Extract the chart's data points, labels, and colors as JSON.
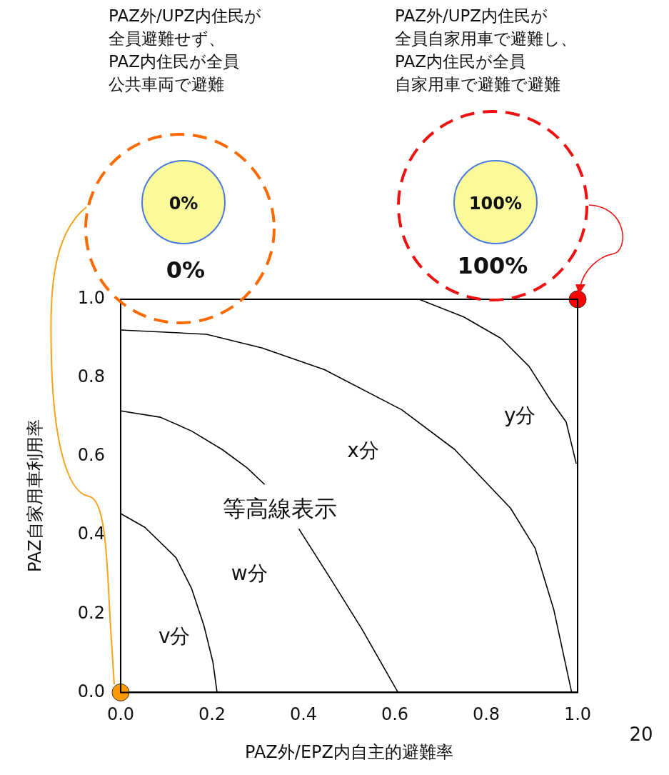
{
  "chart_data": {
    "type": "line",
    "xlabel": "PAZ外/EPZ内自主的避難率",
    "ylabel": "PAZ自家用車利用率",
    "xlim": [
      0,
      1
    ],
    "ylim": [
      0,
      1
    ],
    "xticks": [
      {
        "value": 0,
        "label": "0.0"
      },
      {
        "value": 0.2,
        "label": "0.2"
      },
      {
        "value": 0.4,
        "label": "0.4"
      },
      {
        "value": 0.6,
        "label": "0.6"
      },
      {
        "value": 0.8,
        "label": "0.8"
      },
      {
        "value": 1,
        "label": "1.0"
      }
    ],
    "yticks": [
      {
        "value": 0,
        "label": "0.0"
      },
      {
        "value": 0.2,
        "label": "0.2"
      },
      {
        "value": 0.4,
        "label": "0.4"
      },
      {
        "value": 0.6,
        "label": "0.6"
      },
      {
        "value": 0.8,
        "label": "0.8"
      },
      {
        "value": 1,
        "label": "1.0"
      }
    ],
    "grid": false,
    "legend": false,
    "marker": "none",
    "line_style": "solid",
    "series": [
      {
        "name": "v分",
        "color": "#000000",
        "x": [
          0,
          0.053,
          0.121,
          0.155,
          0.182,
          0.202,
          0.211
        ],
        "values": [
          0.455,
          0.42,
          0.343,
          0.265,
          0.171,
          0.077,
          0
        ]
      },
      {
        "name": "w分",
        "color": "#000000",
        "x": [
          0,
          0.087,
          0.155,
          0.222,
          0.277,
          0.315,
          null,
          0.39,
          0.46,
          0.527,
          0.607
        ],
        "values": [
          0.716,
          0.7,
          0.665,
          0.618,
          0.571,
          0.529,
          null,
          0.416,
          0.288,
          0.163,
          0
        ]
      },
      {
        "name": "x分",
        "color": "#000000",
        "x": [
          0,
          0.188,
          0.31,
          0.446,
          0.615,
          0.731,
          0.853,
          0.907,
          0.948,
          0.987
        ],
        "values": [
          0.922,
          0.911,
          0.876,
          0.821,
          0.719,
          0.618,
          0.469,
          0.367,
          0.21,
          0
        ]
      },
      {
        "name": "y分",
        "color": "#000000",
        "x": [
          0.653,
          0.751,
          0.833,
          0.894,
          0.941,
          0.975,
          0.997
        ],
        "values": [
          1,
          0.955,
          0.9,
          0.829,
          0.743,
          0.688,
          0.582
        ]
      },
      {
        "type": "scatter",
        "marker": "circle",
        "color": "#ff9900",
        "x": [
          0
        ],
        "values": [
          0
        ]
      },
      {
        "type": "scatter",
        "marker": "circle",
        "color": "#ff0000",
        "x": [
          1
        ],
        "values": [
          1
        ]
      }
    ],
    "annotations": [
      "PAZ外/UPZ内住民が全員避難せず、PAZ内住民が全員公共車両で避難",
      "PAZ外/UPZ内住民が全員自家用車で避難し、PAZ内住民が全員自家用車で避難で避難",
      "0%",
      "0%",
      "100%",
      "100%",
      "等高線表示",
      "20"
    ]
  }
}
